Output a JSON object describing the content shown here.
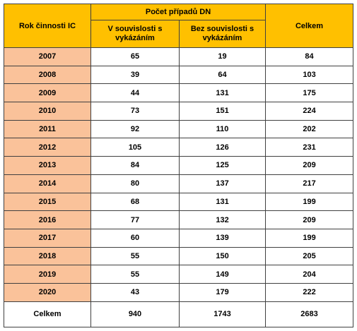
{
  "table": {
    "header": {
      "year": "Rok činnosti IC",
      "group": "Počet případů DN",
      "with": "V souvislosti s vykázáním",
      "without": "Bez souvislosti s vykázáním",
      "total": "Celkem"
    },
    "rows": [
      [
        "2007",
        65,
        19,
        84
      ],
      [
        "2008",
        39,
        64,
        103
      ],
      [
        "2009",
        44,
        131,
        175
      ],
      [
        "2010",
        73,
        151,
        224
      ],
      [
        "2011",
        92,
        110,
        202
      ],
      [
        "2012",
        105,
        126,
        231
      ],
      [
        "2013",
        84,
        125,
        209
      ],
      [
        "2014",
        80,
        137,
        217
      ],
      [
        "2015",
        68,
        131,
        199
      ],
      [
        "2016",
        77,
        132,
        209
      ],
      [
        "2017",
        60,
        139,
        199
      ],
      [
        "2018",
        55,
        150,
        205
      ],
      [
        "2019",
        55,
        149,
        204
      ],
      [
        "2020",
        43,
        179,
        222
      ]
    ],
    "footer": [
      "Celkem",
      940,
      1743,
      2683
    ]
  }
}
